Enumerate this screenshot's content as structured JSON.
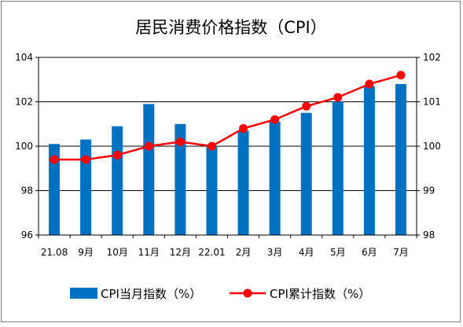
{
  "chart_data": {
    "type": "bar+line",
    "title": "居民消费价格指数（CPI）",
    "categories": [
      "21.08",
      "9月",
      "10月",
      "11月",
      "12月",
      "22.01",
      "2月",
      "3月",
      "4月",
      "5月",
      "6月",
      "7月"
    ],
    "series": [
      {
        "name": "CPI当月指数（%）",
        "type": "bar",
        "axis": "left",
        "color": "#0070C0",
        "values": [
          100.1,
          100.3,
          100.9,
          101.9,
          101.0,
          100.0,
          100.7,
          101.1,
          101.5,
          102.0,
          102.7,
          102.8
        ]
      },
      {
        "name": "CPI累计指数（%）",
        "type": "line",
        "axis": "right",
        "color": "#FF0000",
        "values": [
          99.7,
          99.7,
          99.8,
          100.0,
          100.1,
          100.0,
          100.4,
          100.6,
          100.9,
          101.1,
          101.4,
          101.6
        ]
      }
    ],
    "y_left": {
      "min": 96,
      "max": 104,
      "ticks": [
        "96",
        "98",
        "100",
        "102",
        "104"
      ]
    },
    "y_right": {
      "min": 98,
      "max": 102,
      "ticks": [
        "98",
        "99",
        "100",
        "101",
        "102"
      ]
    },
    "grid": true,
    "legend": "bottom"
  }
}
